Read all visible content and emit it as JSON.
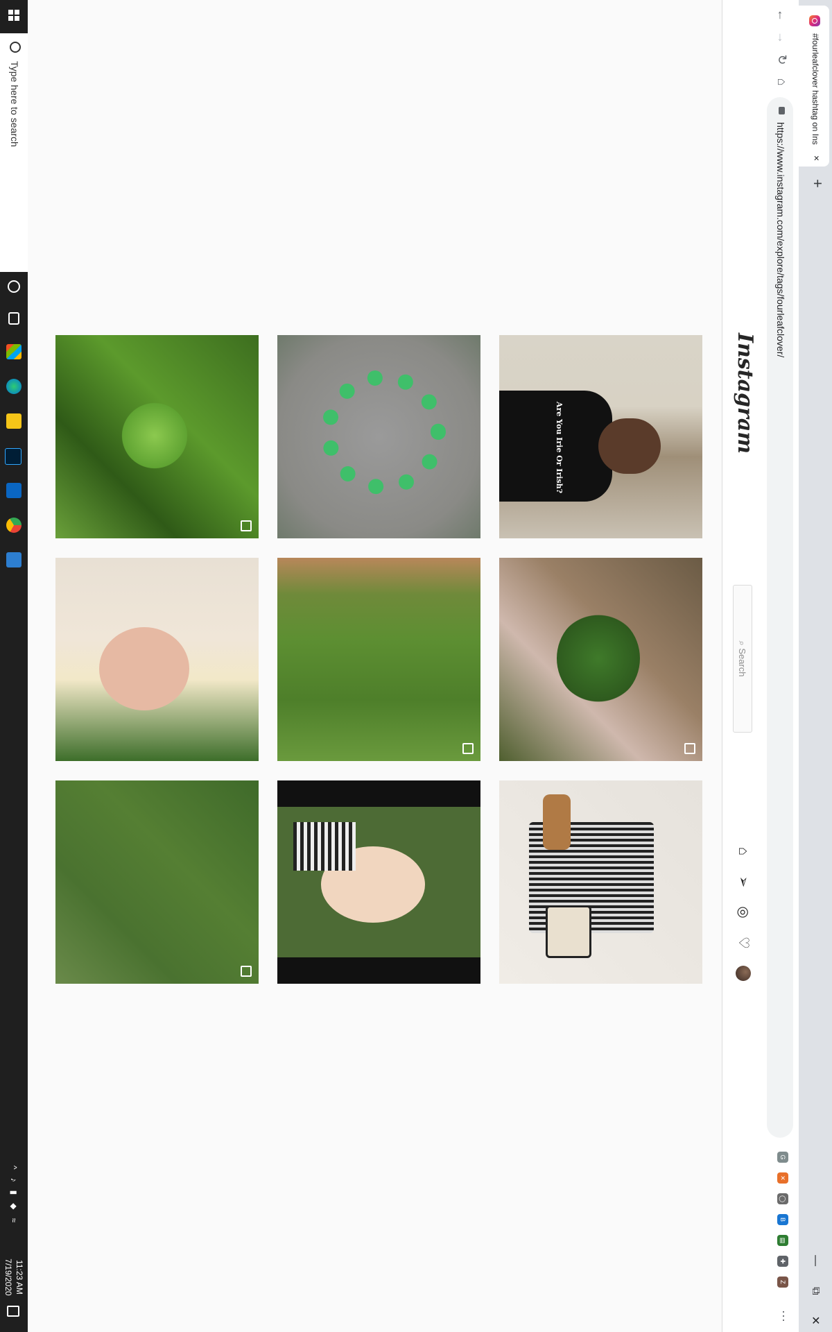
{
  "browser": {
    "tab_title": "#fourleafclover hashtag on Insta",
    "tab_close": "×",
    "new_tab": "+",
    "url": "https://www.instagram.com/explore/tags/fourleafclover/",
    "window_controls": [
      "—",
      "⧉",
      "✕"
    ],
    "extensions": [
      {
        "name": "ext-g",
        "label": "G",
        "color": "#7f8c8d"
      },
      {
        "name": "ext-orange",
        "label": "✕",
        "color": "#e8702a"
      },
      {
        "name": "ext-gray",
        "label": "◯",
        "color": "#6b6b6b"
      },
      {
        "name": "ext-blue",
        "label": "B",
        "color": "#1976d2"
      },
      {
        "name": "ext-green",
        "label": "▤",
        "color": "#2e7d32"
      },
      {
        "name": "ext-puzzle",
        "label": "✚",
        "color": "#5f6368"
      },
      {
        "name": "ext-profile",
        "label": "Z",
        "color": "#795548"
      }
    ]
  },
  "instagram": {
    "logo": "Instagram",
    "search_placeholder": "Search",
    "nav_icons": [
      "home-icon",
      "direct-icon",
      "explore-icon",
      "activity-icon",
      "profile-avatar"
    ]
  },
  "grid": {
    "tiles": [
      {
        "desc": "man-shirt",
        "label": "Are You Irie Or Irish?",
        "multi": false
      },
      {
        "desc": "bracelet",
        "label": "",
        "multi": false
      },
      {
        "desc": "clover-grass",
        "label": "",
        "multi": true
      },
      {
        "desc": "hand-clover",
        "label": "",
        "multi": true
      },
      {
        "desc": "clover-field-feet",
        "label": "",
        "multi": true
      },
      {
        "desc": "girl-clover",
        "label": "",
        "multi": false
      },
      {
        "desc": "outfit-flatlay",
        "label": "",
        "multi": false
      },
      {
        "desc": "woman-clover",
        "label": "",
        "multi": false
      },
      {
        "desc": "clover-patch",
        "label": "",
        "multi": true
      }
    ]
  },
  "taskbar": {
    "search_placeholder": "Type here to search",
    "time": "11:23 AM",
    "date": "7/19/2020"
  },
  "colors": {
    "accent": "#0095f6",
    "taskbar_bg": "#1f1f1f",
    "page_bg": "#fafafa"
  }
}
